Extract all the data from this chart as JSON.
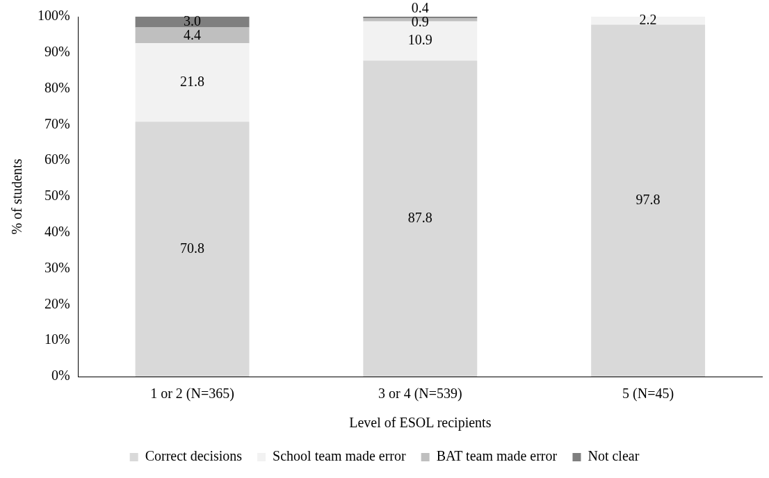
{
  "chart_data": {
    "type": "bar",
    "stacked": true,
    "xlabel": "Level of ESOL recipients",
    "ylabel": "% of students",
    "categories": [
      "1 or 2 (N=365)",
      "3 or 4 (N=539)",
      "5 (N=45)"
    ],
    "series": [
      {
        "name": "Correct decisions",
        "color": "#d9d9d9",
        "values": [
          70.8,
          87.8,
          97.8
        ],
        "value_labels": [
          "70.8",
          "87.8",
          "97.8"
        ]
      },
      {
        "name": "School team made error",
        "color": "#f2f2f2",
        "values": [
          21.8,
          10.9,
          2.2
        ],
        "value_labels": [
          "21.8",
          "10.9",
          "2.2"
        ]
      },
      {
        "name": "BAT team made error",
        "color": "#bfbfbf",
        "values": [
          4.4,
          0.9,
          null
        ],
        "value_labels": [
          "4.4",
          "0.9",
          null
        ]
      },
      {
        "name": "Not clear",
        "color": "#7f7f7f",
        "values": [
          3.0,
          0.4,
          null
        ],
        "value_labels": [
          "3.0",
          "0.4",
          null
        ]
      }
    ],
    "ylim": [
      0,
      100
    ],
    "yticks": [
      {
        "value": 0,
        "label": "0%"
      },
      {
        "value": 10,
        "label": "10%"
      },
      {
        "value": 20,
        "label": "20%"
      },
      {
        "value": 30,
        "label": "30%"
      },
      {
        "value": 40,
        "label": "40%"
      },
      {
        "value": 50,
        "label": "50%"
      },
      {
        "value": 60,
        "label": "60%"
      },
      {
        "value": 70,
        "label": "70%"
      },
      {
        "value": 80,
        "label": "80%"
      },
      {
        "value": 90,
        "label": "90%"
      },
      {
        "value": 100,
        "label": "100%"
      }
    ],
    "grid": false,
    "legend": "bottom"
  }
}
